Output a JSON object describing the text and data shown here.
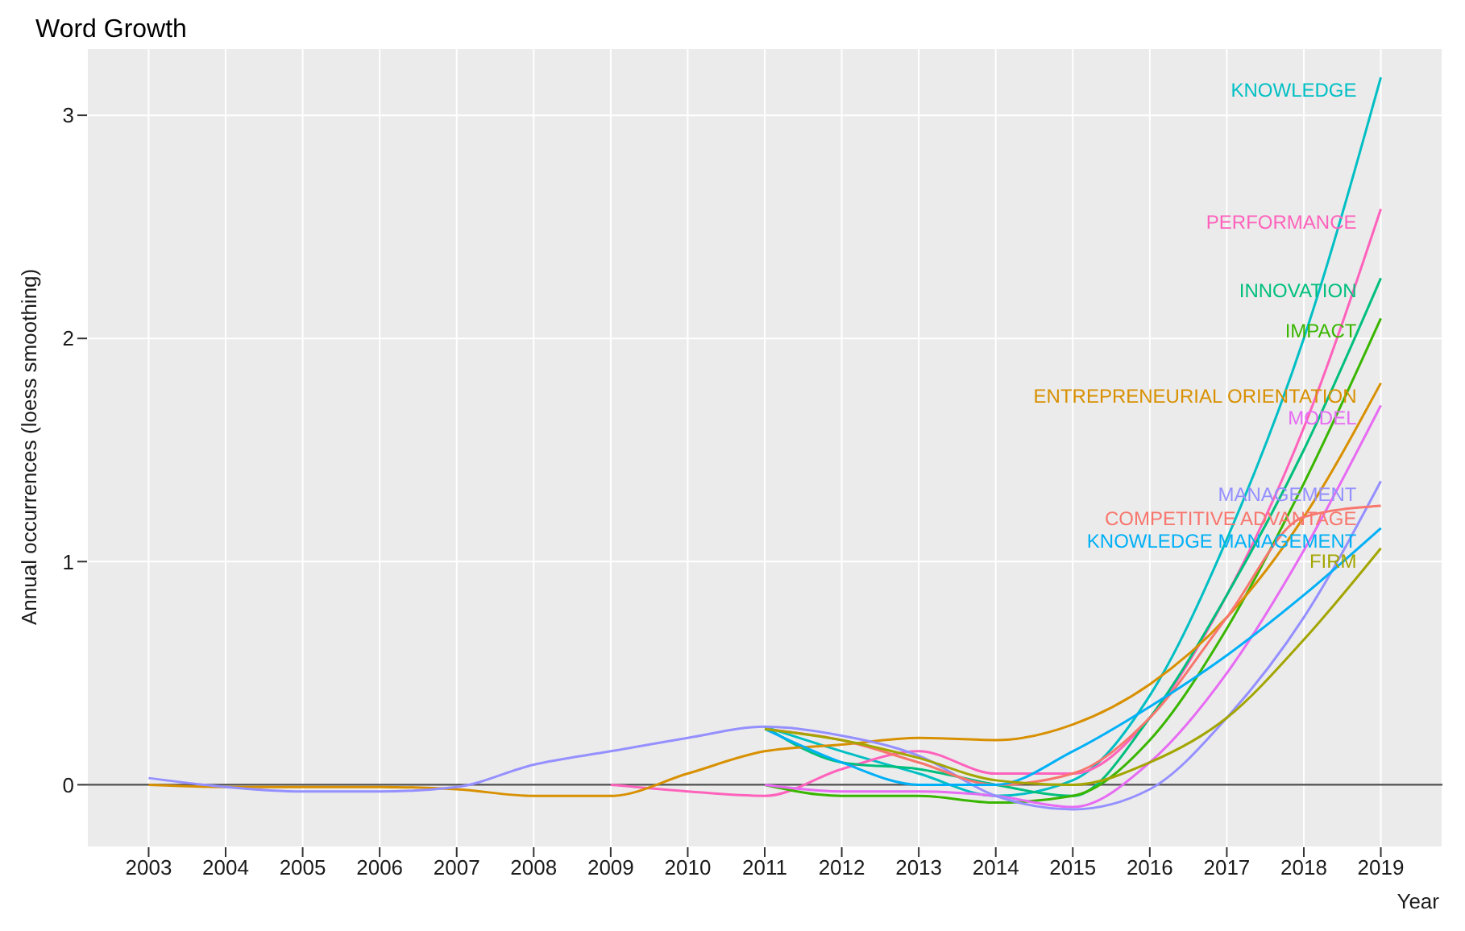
{
  "chart_data": {
    "type": "line",
    "title": "Word Growth",
    "xlabel": "Year",
    "ylabel": "Annual occurrences (loess smoothing)",
    "x": [
      2003,
      2004,
      2005,
      2006,
      2007,
      2008,
      2009,
      2010,
      2011,
      2012,
      2013,
      2014,
      2015,
      2016,
      2017,
      2018,
      2019
    ],
    "series": [
      {
        "name": "KNOWLEDGE",
        "color": "#00bfc4",
        "values": [
          null,
          null,
          null,
          null,
          null,
          null,
          null,
          null,
          0.26,
          0.15,
          0.05,
          -0.05,
          0.02,
          0.4,
          1.1,
          2.0,
          3.17
        ]
      },
      {
        "name": "PERFORMANCE",
        "color": "#ff62bc",
        "values": [
          null,
          null,
          null,
          null,
          null,
          null,
          0,
          -0.03,
          -0.05,
          0.07,
          0.15,
          0.05,
          0.05,
          0.3,
          0.85,
          1.6,
          2.58
        ]
      },
      {
        "name": "INNOVATION",
        "color": "#00bf7d",
        "values": [
          null,
          null,
          null,
          null,
          null,
          null,
          null,
          null,
          0.26,
          0.1,
          0.07,
          0,
          -0.05,
          0.3,
          0.85,
          1.5,
          2.27
        ]
      },
      {
        "name": "IMPACT",
        "color": "#39b600",
        "values": [
          null,
          null,
          null,
          null,
          null,
          null,
          null,
          null,
          0,
          -0.05,
          -0.05,
          -0.08,
          -0.05,
          0.2,
          0.7,
          1.35,
          2.09
        ]
      },
      {
        "name": "ENTREPRENEURIAL ORIENTATION",
        "color": "#d89000",
        "values": [
          0,
          -0.01,
          -0.01,
          -0.01,
          -0.02,
          -0.05,
          -0.05,
          0.05,
          0.15,
          0.18,
          0.21,
          0.2,
          0.27,
          0.45,
          0.75,
          1.2,
          1.8
        ]
      },
      {
        "name": "MODEL",
        "color": "#e76bf3",
        "values": [
          null,
          null,
          null,
          null,
          null,
          null,
          null,
          null,
          0,
          -0.03,
          -0.03,
          -0.05,
          -0.1,
          0.1,
          0.5,
          1.05,
          1.7
        ]
      },
      {
        "name": "MANAGEMENT",
        "color": "#9590ff",
        "values": [
          0.03,
          -0.01,
          -0.03,
          -0.03,
          -0.01,
          0.09,
          0.15,
          0.21,
          0.26,
          0.22,
          0.13,
          -0.05,
          -0.11,
          -0.02,
          0.3,
          0.75,
          1.36
        ]
      },
      {
        "name": "COMPETITIVE ADVANTAGE",
        "color": "#f8766d",
        "values": [
          null,
          null,
          null,
          null,
          null,
          null,
          null,
          null,
          0.25,
          0.2,
          0.1,
          0,
          0.05,
          0.3,
          0.75,
          1.2,
          1.25
        ]
      },
      {
        "name": "KNOWLEDGE MANAGEMENT",
        "color": "#00b0f6",
        "values": [
          null,
          null,
          null,
          null,
          null,
          null,
          null,
          null,
          0.25,
          0.1,
          0,
          0,
          0.15,
          0.35,
          0.58,
          0.85,
          1.15
        ]
      },
      {
        "name": "FIRM",
        "color": "#a3a500",
        "values": [
          null,
          null,
          null,
          null,
          null,
          null,
          null,
          null,
          0.25,
          0.2,
          0.12,
          0.02,
          0,
          0.1,
          0.3,
          0.65,
          1.06
        ]
      }
    ],
    "xlim": [
      2002.2,
      2019.8
    ],
    "xticks": [
      2003,
      2004,
      2005,
      2006,
      2007,
      2008,
      2009,
      2010,
      2011,
      2012,
      2013,
      2014,
      2015,
      2016,
      2017,
      2018,
      2019
    ],
    "ylim": [
      -0.28,
      3.3
    ],
    "yticks": [
      0,
      1,
      2,
      3
    ],
    "ref_lines": [
      {
        "axis": "y",
        "value": 0,
        "color": "#4d4d4d"
      }
    ],
    "grid": true,
    "legend": false,
    "marker": "none",
    "line_style": "solid"
  }
}
